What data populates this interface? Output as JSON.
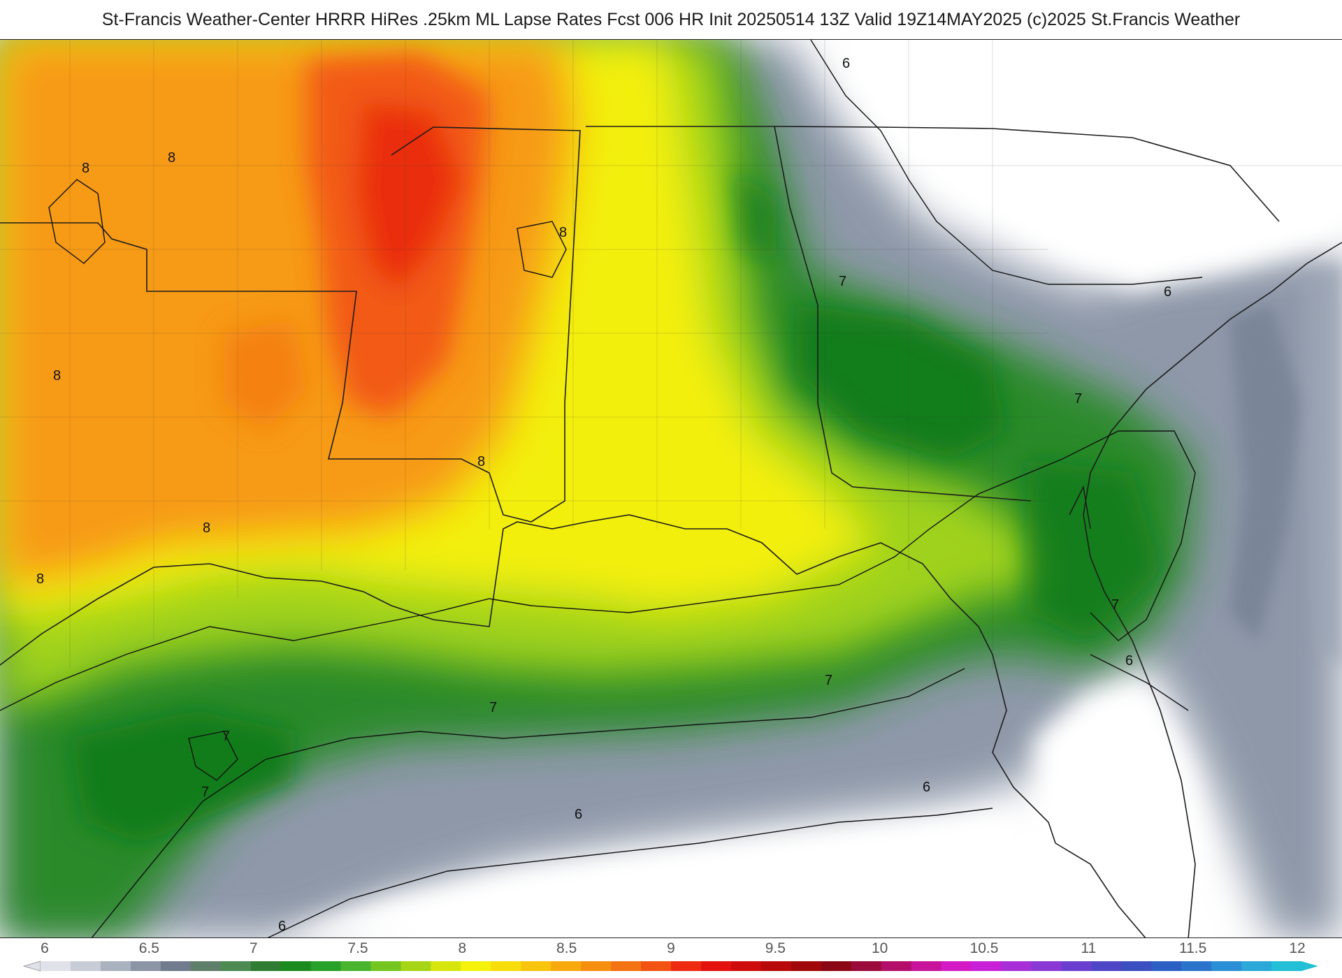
{
  "header": {
    "title": "St-Francis Weather-Center HRRR HiRes .25km ML Lapse Rates  Fcst 006 HR Init 20250514 13Z  Valid 19Z14MAY2025    (c)2025 St.Francis Weather"
  },
  "map": {
    "field": "ML Lapse Rates",
    "contour_labels": [
      "6",
      "7",
      "8"
    ],
    "regions": [
      {
        "name": "high-lapse-core",
        "value": 8.8,
        "color": "#e82e10"
      },
      {
        "name": "orange-zone",
        "value": 8.3,
        "color": "#f79a10"
      },
      {
        "name": "yellow-zone",
        "value": 7.8,
        "color": "#f4f20a"
      },
      {
        "name": "green-zone",
        "value": 7.2,
        "color": "#2e9c22"
      },
      {
        "name": "gray-zone",
        "value": 6.3,
        "color": "#8c97a8"
      },
      {
        "name": "low-zone",
        "value": 6.0,
        "color": "#ffffff"
      }
    ]
  },
  "colorbar": {
    "tick_labels": [
      "6",
      "6.5",
      "7",
      "7.5",
      "8",
      "8.5",
      "9",
      "9.5",
      "10",
      "10.5",
      "11",
      "11.5",
      "12"
    ],
    "min": 6,
    "max": 12,
    "colors": [
      "#dfe2e8",
      "#c8ccd6",
      "#aab1bf",
      "#8c95a6",
      "#717b8e",
      "#5f7f6a",
      "#4c8a52",
      "#2e7d32",
      "#1b8a1f",
      "#27a12a",
      "#49b52e",
      "#74c51f",
      "#a6d515",
      "#d6e60d",
      "#f4f20a",
      "#f7de0a",
      "#f8c40c",
      "#f7a90e",
      "#f68f10",
      "#f47312",
      "#f25212",
      "#ee2b10",
      "#e3120e",
      "#cf0c0c",
      "#b80a0a",
      "#a0080a",
      "#8b0713",
      "#9a0a3a",
      "#b20e6a",
      "#c7149a",
      "#d41ac4",
      "#c821d8",
      "#a82ed8",
      "#8a38d4",
      "#6a3fcf",
      "#4f45c7",
      "#3b4fc0",
      "#2c5fc4",
      "#2a74cc",
      "#2a8fd4",
      "#2aa8d8",
      "#22bfd6"
    ]
  }
}
